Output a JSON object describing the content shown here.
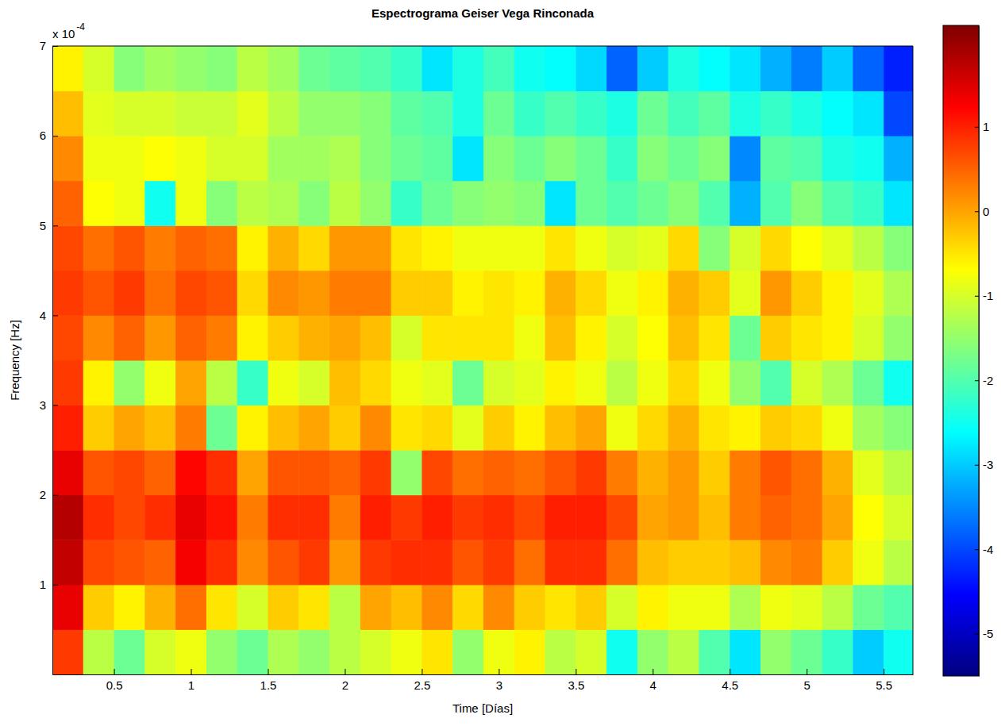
{
  "chart_data": {
    "type": "heatmap",
    "title": "Espectrograma Geiser Vega Rinconada",
    "x_label": "Time [Días]",
    "y_label": "Frequency [Hz]",
    "y_scale_label": "x 10",
    "y_scale_exponent": "-4",
    "x": [
      0.2,
      0.4,
      0.6,
      0.8,
      1.0,
      1.2,
      1.4,
      1.6,
      1.8,
      2.0,
      2.2,
      2.4,
      2.6,
      2.8,
      3.0,
      3.2,
      3.4,
      3.6,
      3.8,
      4.0,
      4.2,
      4.4,
      4.6,
      4.8,
      5.0,
      5.2,
      5.4,
      5.6
    ],
    "y": [
      0.25,
      0.75,
      1.25,
      1.75,
      2.25,
      2.75,
      3.25,
      3.75,
      4.25,
      4.75,
      5.25,
      5.75,
      6.25,
      6.75
    ],
    "xlim": [
      0.1,
      5.69
    ],
    "ylim": [
      0,
      7
    ],
    "xticks": [
      0.5,
      1,
      1.5,
      2,
      2.5,
      3,
      3.5,
      4,
      4.5,
      5,
      5.5
    ],
    "yticks": [
      1,
      2,
      3,
      4,
      5,
      6,
      7
    ],
    "zlim": [
      -5.5,
      2.2
    ],
    "zticks": [
      -5,
      -4,
      -3,
      -2,
      -1,
      0,
      1
    ],
    "z": [
      [
        0.8,
        -1.2,
        -1.8,
        -1.0,
        -0.8,
        -1.5,
        -1.8,
        -1.3,
        -1.5,
        -1.2,
        -1.0,
        -0.8,
        -0.5,
        -1.5,
        -0.8,
        -0.6,
        -1.2,
        -1.0,
        -2.5,
        -1.5,
        -1.2,
        -2.0,
        -2.8,
        -1.5,
        -1.8,
        -2.2,
        -3.0,
        -2.5
      ],
      [
        1.4,
        -0.3,
        -0.6,
        -0.1,
        0.4,
        -0.5,
        -1.0,
        -0.3,
        -0.5,
        -1.2,
        0.0,
        -0.2,
        0.2,
        -0.4,
        0.2,
        -0.3,
        -0.5,
        -0.3,
        -1.0,
        -0.6,
        -0.8,
        -0.8,
        -1.3,
        -0.8,
        -0.9,
        -1.2,
        -1.8,
        -2.0
      ],
      [
        1.7,
        0.7,
        0.6,
        0.5,
        1.3,
        0.9,
        0.2,
        0.6,
        0.8,
        0.1,
        0.8,
        0.9,
        0.9,
        0.6,
        0.8,
        0.4,
        0.9,
        0.9,
        0.4,
        -0.2,
        -0.3,
        -0.3,
        -0.2,
        0.2,
        0.3,
        -0.3,
        -0.8,
        -1.2
      ],
      [
        1.8,
        0.9,
        0.7,
        0.9,
        1.4,
        1.1,
        0.3,
        0.9,
        0.9,
        0.3,
        1.0,
        0.8,
        1.0,
        0.8,
        0.9,
        0.7,
        1.0,
        1.0,
        0.7,
        0.0,
        0.1,
        -0.2,
        0.3,
        0.5,
        0.4,
        0.0,
        -0.7,
        -1.0
      ],
      [
        1.4,
        0.6,
        0.7,
        0.5,
        1.2,
        0.9,
        0.0,
        0.6,
        0.6,
        0.5,
        0.8,
        -1.5,
        0.7,
        0.4,
        0.5,
        0.4,
        0.6,
        0.8,
        0.3,
        -0.1,
        0.1,
        -0.3,
        0.3,
        0.6,
        0.4,
        -0.1,
        -0.9,
        -1.2
      ],
      [
        1.0,
        -0.3,
        0.0,
        -0.2,
        0.3,
        -1.8,
        -0.6,
        -0.2,
        0.0,
        -0.3,
        0.2,
        -0.5,
        -0.4,
        -0.9,
        -0.3,
        -0.6,
        -0.2,
        0.0,
        -0.8,
        -0.4,
        -0.1,
        -0.5,
        -0.6,
        -0.3,
        -0.4,
        -0.8,
        -1.4,
        -1.6
      ],
      [
        0.8,
        -0.6,
        -1.5,
        -0.8,
        0.0,
        -1.2,
        -2.2,
        -0.8,
        -1.0,
        -0.2,
        -0.4,
        -0.8,
        -0.9,
        -1.8,
        -1.0,
        -0.9,
        -0.6,
        -0.8,
        -1.2,
        -0.8,
        -0.4,
        -0.8,
        -1.5,
        -2.0,
        -1.0,
        -1.3,
        -1.8,
        -2.5
      ],
      [
        0.7,
        0.2,
        0.5,
        0.1,
        0.5,
        0.3,
        -0.6,
        -0.3,
        -0.1,
        0.0,
        -0.2,
        -1.0,
        -0.5,
        -0.5,
        -0.5,
        -0.8,
        -0.2,
        -0.6,
        -1.0,
        -0.7,
        -0.2,
        -0.5,
        -1.8,
        -0.3,
        -0.5,
        -0.6,
        -1.0,
        -1.5
      ],
      [
        0.8,
        0.6,
        0.8,
        0.4,
        0.7,
        0.6,
        -0.4,
        0.2,
        0.1,
        0.3,
        0.3,
        -0.3,
        -0.3,
        -0.6,
        -0.5,
        -0.6,
        -0.1,
        -0.4,
        -0.8,
        -0.6,
        -0.1,
        -0.3,
        -0.9,
        0.1,
        -0.3,
        -0.6,
        -0.9,
        -1.3
      ],
      [
        0.7,
        0.4,
        0.6,
        0.3,
        0.5,
        0.4,
        -0.6,
        -0.1,
        -0.4,
        0.1,
        0.1,
        -0.5,
        -0.6,
        -0.8,
        -0.8,
        -0.8,
        -0.5,
        -0.8,
        -1.0,
        -0.9,
        -0.4,
        -1.6,
        -1.0,
        -0.4,
        -0.7,
        -0.9,
        -1.2,
        -1.6
      ],
      [
        0.5,
        -0.7,
        -0.8,
        -2.5,
        -0.8,
        -1.6,
        -1.2,
        -1.3,
        -1.6,
        -1.2,
        -1.5,
        -2.2,
        -1.8,
        -1.6,
        -1.5,
        -1.6,
        -2.8,
        -1.8,
        -2.0,
        -1.8,
        -1.6,
        -2.0,
        -3.2,
        -2.0,
        -1.6,
        -2.0,
        -2.2,
        -2.8
      ],
      [
        0.2,
        -0.8,
        -0.8,
        -0.7,
        -0.8,
        -1.0,
        -1.0,
        -1.4,
        -1.4,
        -1.3,
        -1.6,
        -1.8,
        -1.9,
        -2.8,
        -1.6,
        -1.8,
        -1.6,
        -1.8,
        -2.2,
        -1.6,
        -1.8,
        -1.6,
        -3.5,
        -1.9,
        -2.0,
        -2.4,
        -2.5,
        -3.2
      ],
      [
        -0.2,
        -0.9,
        -1.0,
        -1.0,
        -1.1,
        -1.1,
        -0.9,
        -1.2,
        -1.5,
        -1.5,
        -1.6,
        -1.9,
        -2.0,
        -2.4,
        -1.8,
        -2.2,
        -2.0,
        -2.2,
        -2.4,
        -1.8,
        -2.1,
        -1.9,
        -2.4,
        -2.2,
        -2.4,
        -2.6,
        -2.8,
        -4.0
      ],
      [
        -0.6,
        -1.0,
        -1.6,
        -1.4,
        -1.5,
        -1.6,
        -1.2,
        -1.4,
        -1.8,
        -1.9,
        -2.0,
        -2.2,
        -2.8,
        -2.4,
        -2.1,
        -2.5,
        -2.6,
        -2.9,
        -3.8,
        -3.0,
        -2.4,
        -2.6,
        -2.8,
        -3.2,
        -3.6,
        -3.0,
        -3.8,
        -4.3
      ]
    ]
  }
}
